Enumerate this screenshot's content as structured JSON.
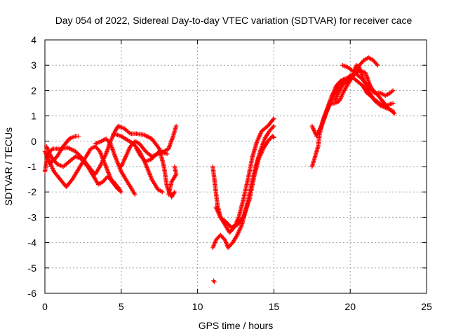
{
  "chart_data": {
    "type": "scatter",
    "title": "Day 054 of 2022, Sidereal Day-to-day VTEC variation (SDTVAR) for receiver cace",
    "xlabel": "GPS time / hours",
    "ylabel": "SDTVAR / TECUs",
    "xlim": [
      0,
      25
    ],
    "ylim": [
      -6,
      4
    ],
    "x_ticks": [
      "0",
      "5",
      "10",
      "15",
      "20",
      "25"
    ],
    "y_ticks": [
      "4",
      "3",
      "2",
      "1",
      "0",
      "-1",
      "-2",
      "-3",
      "-4",
      "-5",
      "-6"
    ],
    "grid": true,
    "marker": "+",
    "series_color": "#ff0000",
    "series": [
      {
        "tracks": [
          [
            [
              0.0,
              -1.2
            ],
            [
              0.2,
              -0.5
            ],
            [
              0.5,
              -0.3
            ],
            [
              1.0,
              -0.3
            ],
            [
              1.5,
              -0.25
            ],
            [
              2.0,
              -0.4
            ],
            [
              2.5,
              -0.7
            ],
            [
              3.0,
              -1.1
            ],
            [
              3.3,
              -1.3
            ],
            [
              3.6,
              -1.0
            ],
            [
              4.0,
              -0.5
            ],
            [
              4.3,
              0.0
            ],
            [
              4.6,
              0.4
            ],
            [
              4.8,
              0.6
            ],
            [
              5.2,
              0.5
            ],
            [
              5.6,
              0.3
            ],
            [
              6.0,
              0.3
            ],
            [
              6.5,
              0.25
            ],
            [
              7.0,
              0.1
            ],
            [
              7.5,
              -0.3
            ],
            [
              7.8,
              -1.0
            ],
            [
              8.0,
              -1.8
            ],
            [
              8.3,
              -2.2
            ],
            [
              8.5,
              -2.0
            ]
          ],
          [
            [
              0.0,
              -0.4
            ],
            [
              0.3,
              -0.8
            ],
            [
              0.6,
              -1.2
            ],
            [
              1.0,
              -1.5
            ],
            [
              1.4,
              -1.8
            ],
            [
              1.8,
              -1.5
            ],
            [
              2.2,
              -1.1
            ],
            [
              2.6,
              -0.7
            ],
            [
              3.0,
              -0.3
            ],
            [
              3.3,
              -0.2
            ],
            [
              3.6,
              -0.4
            ],
            [
              4.0,
              -1.0
            ],
            [
              4.4,
              -1.6
            ],
            [
              4.8,
              -1.9
            ],
            [
              5.0,
              -2.0
            ]
          ],
          [
            [
              0.1,
              -0.2
            ],
            [
              0.4,
              -0.6
            ],
            [
              0.8,
              -0.9
            ],
            [
              1.2,
              -1.0
            ],
            [
              1.6,
              -0.8
            ],
            [
              2.0,
              -0.6
            ],
            [
              2.4,
              -0.7
            ],
            [
              2.8,
              -1.0
            ],
            [
              3.2,
              -1.4
            ],
            [
              3.5,
              -1.7
            ],
            [
              3.8,
              -1.6
            ],
            [
              4.1,
              -1.4
            ],
            [
              4.5,
              -1.6
            ],
            [
              4.9,
              -1.9
            ]
          ],
          [
            [
              0.3,
              -0.9
            ],
            [
              0.8,
              -0.6
            ],
            [
              1.2,
              -0.2
            ],
            [
              1.6,
              0.1
            ],
            [
              2.0,
              0.2
            ],
            [
              2.2,
              0.2
            ]
          ],
          [
            [
              3.3,
              -0.1
            ],
            [
              3.7,
              0.0
            ],
            [
              4.0,
              0.1
            ],
            [
              4.3,
              -0.1
            ],
            [
              4.6,
              -0.6
            ],
            [
              5.0,
              -1.2
            ],
            [
              5.5,
              -1.7
            ],
            [
              5.9,
              -2.1
            ]
          ],
          [
            [
              4.5,
              0.3
            ],
            [
              5.0,
              0.2
            ],
            [
              5.4,
              0.05
            ],
            [
              5.8,
              -0.1
            ],
            [
              6.2,
              -0.4
            ],
            [
              6.6,
              -0.9
            ],
            [
              7.0,
              -1.5
            ],
            [
              7.4,
              -1.9
            ],
            [
              7.7,
              -2.0
            ]
          ],
          [
            [
              5.0,
              -1.0
            ],
            [
              5.3,
              -0.6
            ],
            [
              5.6,
              -0.2
            ],
            [
              5.9,
              0.0
            ],
            [
              6.2,
              -0.1
            ],
            [
              6.6,
              -0.4
            ],
            [
              7.0,
              -0.6
            ],
            [
              7.4,
              -0.5
            ],
            [
              7.8,
              -0.4
            ],
            [
              8.1,
              -0.3
            ],
            [
              8.4,
              0.2
            ],
            [
              8.6,
              0.6
            ]
          ],
          [
            [
              6.0,
              -0.3
            ],
            [
              6.3,
              -0.6
            ],
            [
              6.6,
              -0.8
            ],
            [
              7.0,
              -0.7
            ],
            [
              7.3,
              -0.5
            ],
            [
              7.6,
              -0.4
            ],
            [
              8.0,
              -0.5
            ]
          ],
          [
            [
              8.5,
              -1.0
            ],
            [
              8.6,
              -1.3
            ],
            [
              8.3,
              -1.6
            ],
            [
              8.1,
              -2.1
            ]
          ],
          [
            [
              11.0,
              -1.0
            ],
            [
              11.1,
              -1.5
            ],
            [
              11.2,
              -2.0
            ],
            [
              11.3,
              -2.5
            ],
            [
              11.5,
              -3.0
            ],
            [
              11.8,
              -3.3
            ],
            [
              12.1,
              -3.6
            ],
            [
              12.4,
              -3.4
            ],
            [
              12.7,
              -3.0
            ],
            [
              13.0,
              -2.3
            ],
            [
              13.3,
              -1.5
            ],
            [
              13.6,
              -0.6
            ],
            [
              13.9,
              0.0
            ],
            [
              14.2,
              0.4
            ],
            [
              14.6,
              0.6
            ],
            [
              15.0,
              0.9
            ]
          ],
          [
            [
              11.0,
              -4.2
            ],
            [
              11.2,
              -3.9
            ],
            [
              11.5,
              -3.7
            ],
            [
              11.8,
              -3.9
            ],
            [
              12.0,
              -4.2
            ],
            [
              12.3,
              -4.0
            ],
            [
              12.6,
              -3.7
            ],
            [
              12.9,
              -3.3
            ],
            [
              13.2,
              -2.6
            ],
            [
              13.5,
              -1.8
            ],
            [
              13.8,
              -1.0
            ],
            [
              14.1,
              -0.4
            ],
            [
              14.4,
              0.1
            ],
            [
              14.7,
              0.4
            ],
            [
              15.0,
              0.6
            ]
          ],
          [
            [
              11.2,
              -2.6
            ],
            [
              11.5,
              -3.0
            ],
            [
              11.9,
              -3.2
            ],
            [
              12.2,
              -3.4
            ],
            [
              12.6,
              -3.3
            ],
            [
              13.0,
              -3.0
            ],
            [
              13.4,
              -2.3
            ],
            [
              13.7,
              -1.4
            ],
            [
              14.0,
              -0.7
            ],
            [
              14.3,
              -0.3
            ],
            [
              14.6,
              0.0
            ],
            [
              14.9,
              0.2
            ],
            [
              15.0,
              0.15
            ]
          ],
          [
            [
              11.05,
              -5.5
            ],
            [
              11.1,
              -5.55
            ]
          ],
          [
            [
              17.5,
              -1.0
            ],
            [
              17.7,
              -0.6
            ],
            [
              17.9,
              -0.2
            ],
            [
              18.0,
              0.3
            ],
            [
              18.2,
              0.8
            ],
            [
              18.5,
              1.3
            ],
            [
              18.8,
              1.8
            ],
            [
              19.1,
              2.2
            ],
            [
              19.4,
              2.4
            ],
            [
              19.8,
              2.5
            ],
            [
              20.2,
              2.6
            ],
            [
              20.6,
              2.8
            ],
            [
              21.0,
              2.7
            ],
            [
              21.3,
              2.2
            ],
            [
              21.6,
              1.9
            ],
            [
              22.0,
              1.9
            ],
            [
              22.3,
              1.8
            ],
            [
              22.6,
              1.9
            ],
            [
              22.8,
              2.0
            ]
          ],
          [
            [
              17.5,
              0.6
            ],
            [
              17.8,
              0.2
            ],
            [
              18.1,
              0.6
            ],
            [
              18.4,
              1.1
            ],
            [
              18.7,
              1.5
            ],
            [
              19.0,
              1.5
            ],
            [
              19.3,
              1.6
            ],
            [
              19.6,
              2.0
            ],
            [
              20.0,
              2.4
            ],
            [
              20.3,
              2.7
            ],
            [
              20.6,
              3.0
            ],
            [
              20.9,
              3.2
            ],
            [
              21.2,
              3.3
            ],
            [
              21.5,
              3.2
            ],
            [
              21.8,
              3.0
            ]
          ],
          [
            [
              18.0,
              0.4
            ],
            [
              18.3,
              0.9
            ],
            [
              18.6,
              1.4
            ],
            [
              18.9,
              1.8
            ],
            [
              19.2,
              2.1
            ],
            [
              19.5,
              2.3
            ],
            [
              19.8,
              2.3
            ],
            [
              20.1,
              2.5
            ],
            [
              20.4,
              3.0
            ],
            [
              20.6,
              2.9
            ],
            [
              20.9,
              2.4
            ],
            [
              21.2,
              2.0
            ],
            [
              21.6,
              1.6
            ],
            [
              22.0,
              1.4
            ],
            [
              22.4,
              1.3
            ],
            [
              22.8,
              1.2
            ]
          ],
          [
            [
              19.0,
              1.6
            ],
            [
              19.3,
              2.0
            ],
            [
              19.7,
              2.4
            ],
            [
              20.0,
              2.6
            ],
            [
              20.4,
              2.4
            ],
            [
              20.8,
              2.2
            ],
            [
              21.1,
              1.9
            ],
            [
              21.5,
              1.7
            ],
            [
              21.9,
              1.5
            ],
            [
              22.3,
              1.4
            ],
            [
              22.8,
              1.5
            ]
          ],
          [
            [
              19.5,
              3.0
            ],
            [
              19.9,
              2.9
            ],
            [
              20.3,
              2.7
            ],
            [
              20.7,
              2.5
            ],
            [
              21.0,
              2.3
            ],
            [
              21.3,
              2.1
            ],
            [
              21.7,
              1.9
            ],
            [
              22.1,
              1.6
            ],
            [
              22.5,
              1.3
            ],
            [
              22.9,
              1.1
            ]
          ]
        ]
      }
    ]
  }
}
